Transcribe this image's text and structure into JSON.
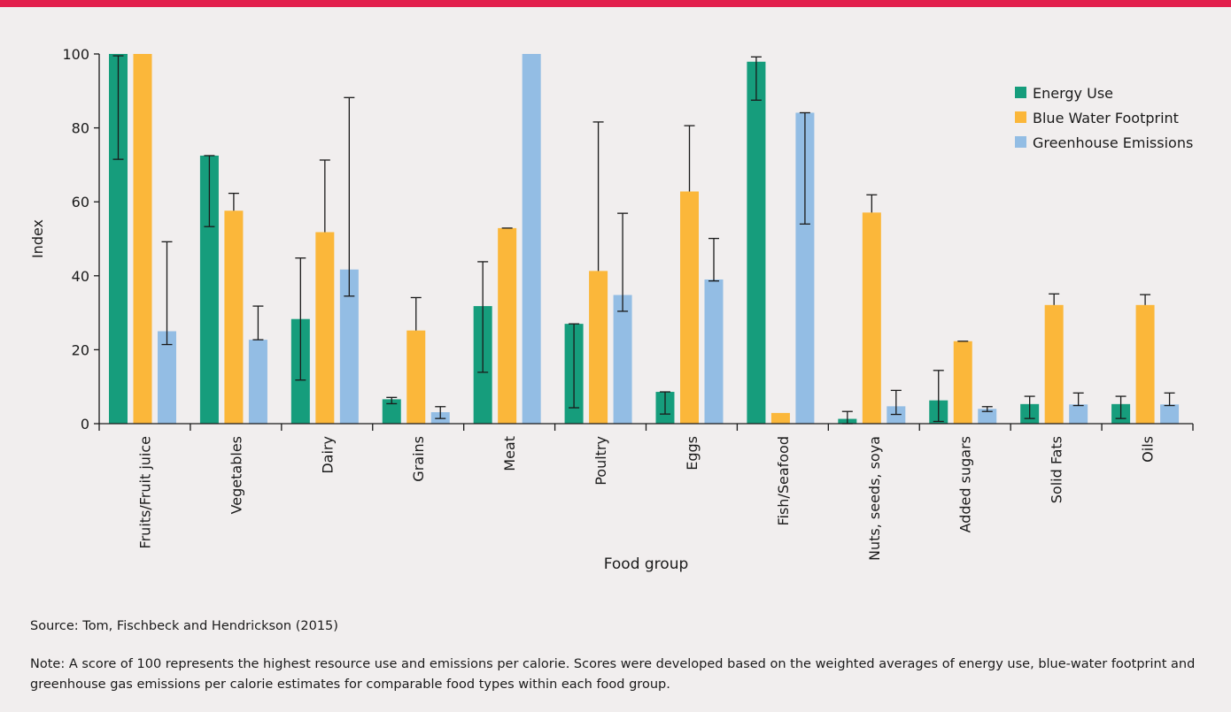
{
  "chart_data": {
    "type": "bar",
    "xlabel": "Food group",
    "ylabel": "Index",
    "ylim": [
      0,
      100
    ],
    "yticks": [
      0,
      20,
      40,
      60,
      80,
      100
    ],
    "grid": false,
    "legend_position": "top-right",
    "categories": [
      "Fruits/Fruit juice",
      "Vegetables",
      "Dairy",
      "Grains",
      "Meat",
      "Poultry",
      "Eggs",
      "Fish/Seafood",
      "Nuts, seeds, soya",
      "Added sugars",
      "Solid Fats",
      "Oils"
    ],
    "series": [
      {
        "name": "Energy Use",
        "color": "#169d7c",
        "values": [
          100,
          72.5,
          28.3,
          6.6,
          31.8,
          27,
          8.6,
          97.9,
          1.3,
          6.3,
          5.3,
          5.3
        ],
        "error_low": [
          71.5,
          53.3,
          11.8,
          5.4,
          13.9,
          4.3,
          2.6,
          87.5,
          0,
          0.6,
          1.4,
          1.4
        ],
        "error_high": [
          99.5,
          72.5,
          44.8,
          7.1,
          43.8,
          27,
          8.6,
          99.2,
          3.3,
          14.4,
          7.4,
          7.4
        ]
      },
      {
        "name": "Blue Water Footprint",
        "color": "#fbb73a",
        "values": [
          100,
          57.6,
          51.8,
          25.2,
          52.9,
          41.3,
          62.8,
          2.9,
          57.1,
          22.3,
          32.1,
          32.1
        ],
        "error_low": null,
        "error_high": [
          null,
          62.3,
          71.3,
          34.1,
          52.9,
          81.6,
          80.6,
          null,
          61.9,
          22.3,
          35.1,
          34.9
        ]
      },
      {
        "name": "Greenhouse Emissions",
        "color": "#93bde4",
        "values": [
          25,
          22.7,
          41.7,
          3.1,
          100,
          34.8,
          39,
          84.1,
          4.7,
          4,
          5.2,
          5.2
        ],
        "error_low": [
          21.4,
          22.7,
          34.5,
          1.4,
          null,
          30.4,
          38.6,
          54,
          2.5,
          3.3,
          4.9,
          4.9
        ],
        "error_high": [
          49.2,
          31.8,
          88.2,
          4.6,
          null,
          56.9,
          50.1,
          84.1,
          9,
          4.6,
          8.3,
          8.3
        ]
      }
    ]
  },
  "footer": {
    "source": "Source: Tom, Fischbeck and Hendrickson (2015)",
    "note": "Note: A score of 100 represents the highest resource use and emissions per calorie. Scores were developed based on the weighted averages of energy use, blue-water footprint and greenhouse gas emissions per calorie estimates for comparable food types within each food group."
  }
}
